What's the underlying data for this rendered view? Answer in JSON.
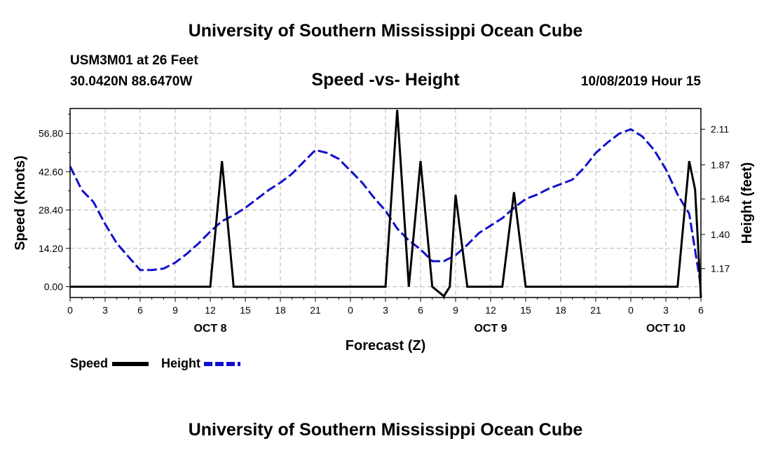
{
  "header": {
    "title": "University of Southern Mississippi Ocean Cube",
    "station": "USM3M01 at 26 Feet",
    "coords": "30.0420N 88.6470W",
    "chart_title": "Speed -vs- Height",
    "datetime": "10/08/2019 Hour 15"
  },
  "footer": {
    "title": "University of Southern Mississippi Ocean Cube"
  },
  "colors": {
    "speed": "#000000",
    "height": "#1010cc",
    "grid": "#b4b4b4"
  },
  "chart_data": {
    "type": "line",
    "title": "Speed -vs- Height",
    "xlabel": "Forecast (Z)",
    "ylabel": "Speed (Knots)",
    "y2label": "Height (feet)",
    "xlim": [
      0,
      54
    ],
    "ylim": [
      -4,
      66
    ],
    "y2lim": [
      0.975,
      2.25
    ],
    "x_ticks": [
      0,
      3,
      6,
      9,
      12,
      15,
      18,
      21,
      24,
      27,
      30,
      33,
      36,
      39,
      42,
      45,
      48,
      51,
      54
    ],
    "x_tick_labels": [
      "0",
      "3",
      "6",
      "9",
      "12",
      "15",
      "18",
      "21",
      "0",
      "3",
      "6",
      "9",
      "12",
      "15",
      "18",
      "21",
      "0",
      "3",
      "6"
    ],
    "date_labels": [
      {
        "x": 12,
        "label": "OCT 8"
      },
      {
        "x": 36,
        "label": "OCT 9"
      },
      {
        "x": 51,
        "label": "OCT 10"
      }
    ],
    "y_ticks": [
      0,
      14.2,
      28.4,
      42.6,
      56.8
    ],
    "y_tick_labels": [
      "0.00",
      "14.20",
      "28.40",
      "42.60",
      "56.80"
    ],
    "y2_ticks": [
      1.17,
      1.4,
      1.64,
      1.87,
      2.11
    ],
    "y2_tick_labels": [
      "1.17",
      "1.40",
      "1.64",
      "1.87",
      "2.11"
    ],
    "legend": [
      {
        "label": "Speed",
        "style": "solid"
      },
      {
        "label": "Height",
        "style": "dashed"
      }
    ],
    "series": [
      {
        "name": "Speed",
        "axis": "left",
        "x": [
          0,
          12,
          13,
          14,
          27,
          28,
          29,
          30,
          31,
          32,
          32.5,
          33,
          34,
          35,
          37,
          38,
          39,
          52,
          53,
          53.5,
          54
        ],
        "values": [
          0,
          0,
          46.5,
          0,
          0,
          65.5,
          0,
          46.5,
          0,
          -3.5,
          0,
          34,
          0,
          0,
          0,
          35,
          0,
          0,
          46.5,
          36,
          -4
        ]
      },
      {
        "name": "Height",
        "axis": "right",
        "x": [
          0,
          1,
          2,
          3,
          4,
          5,
          6,
          7,
          8,
          9,
          10,
          11,
          12,
          13,
          14,
          15,
          16,
          17,
          18,
          19,
          20,
          21,
          22,
          23,
          24,
          25,
          26,
          27,
          28,
          29,
          30,
          31,
          32,
          33,
          34,
          35,
          36,
          37,
          38,
          39,
          40,
          41,
          42,
          43,
          44,
          45,
          46,
          47,
          48,
          49,
          50,
          51,
          52,
          53,
          54
        ],
        "values": [
          1.86,
          1.7,
          1.62,
          1.47,
          1.34,
          1.25,
          1.16,
          1.16,
          1.17,
          1.21,
          1.27,
          1.34,
          1.42,
          1.49,
          1.53,
          1.58,
          1.64,
          1.7,
          1.75,
          1.81,
          1.89,
          1.97,
          1.95,
          1.91,
          1.83,
          1.75,
          1.65,
          1.56,
          1.44,
          1.36,
          1.3,
          1.22,
          1.22,
          1.26,
          1.33,
          1.41,
          1.46,
          1.51,
          1.58,
          1.64,
          1.67,
          1.71,
          1.74,
          1.77,
          1.85,
          1.95,
          2.02,
          2.08,
          2.11,
          2.06,
          1.97,
          1.84,
          1.67,
          1.54,
          1.05
        ]
      }
    ]
  }
}
